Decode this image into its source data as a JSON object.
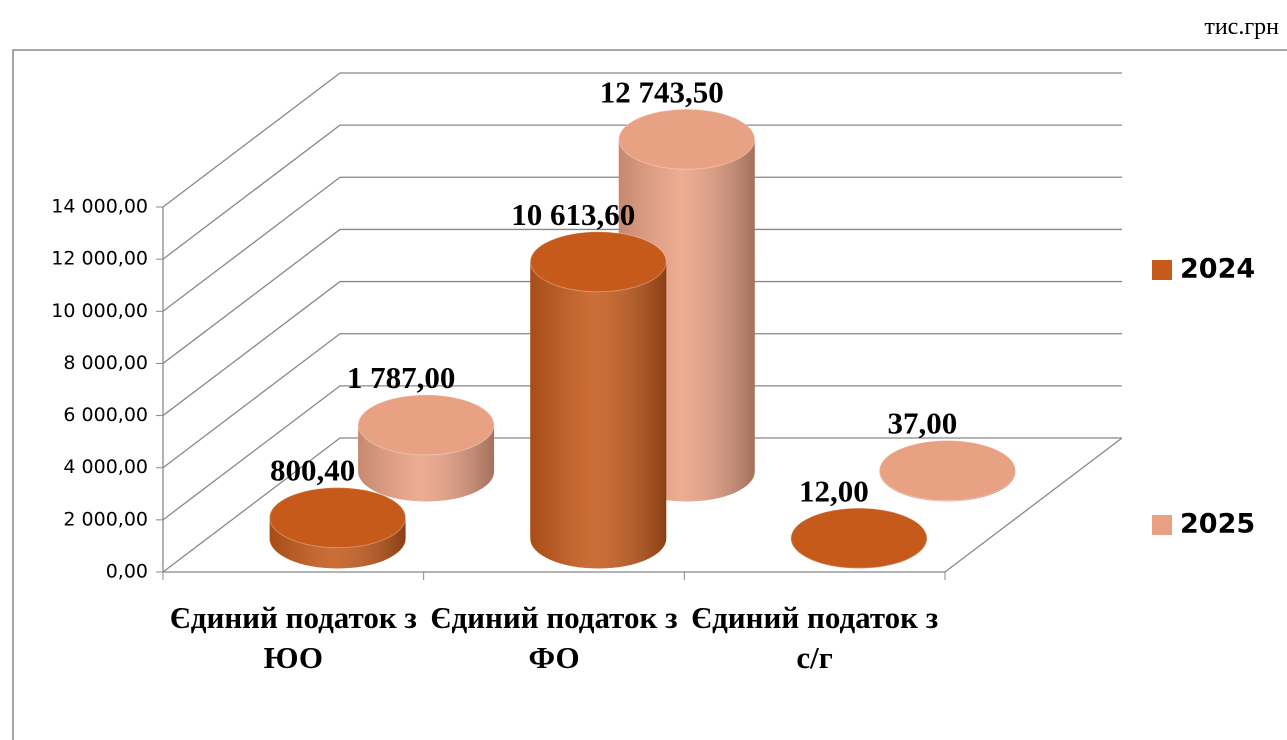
{
  "chart_data": {
    "type": "cylinder3d",
    "unit_label": "тис.грн",
    "categories": [
      "Єдиний податок з ЮО",
      "Єдиний податок з ФО",
      "Єдиний податок з с/г"
    ],
    "series": [
      {
        "name": "2024",
        "color": "#c55a1b",
        "values": [
          800.4,
          10613.6,
          12
        ],
        "value_labels": [
          "800,40",
          "10 613,60",
          "12,00"
        ]
      },
      {
        "name": "2025",
        "color": "#e9a184",
        "values": [
          1787,
          12743.5,
          37
        ],
        "value_labels": [
          "1 787,00",
          "12 743,50",
          "37,00"
        ]
      }
    ],
    "ylim": [
      0,
      14000
    ],
    "yticks": [
      {
        "value": 0,
        "label": "0,00"
      },
      {
        "value": 2000,
        "label": "2 000,00"
      },
      {
        "value": 4000,
        "label": "4 000,00"
      },
      {
        "value": 6000,
        "label": "6 000,00"
      },
      {
        "value": 8000,
        "label": "8 000,00"
      },
      {
        "value": 10000,
        "label": "10 000,00"
      },
      {
        "value": 12000,
        "label": "12 000,00"
      },
      {
        "value": 14000,
        "label": "14 000,00"
      }
    ],
    "grid": true
  }
}
